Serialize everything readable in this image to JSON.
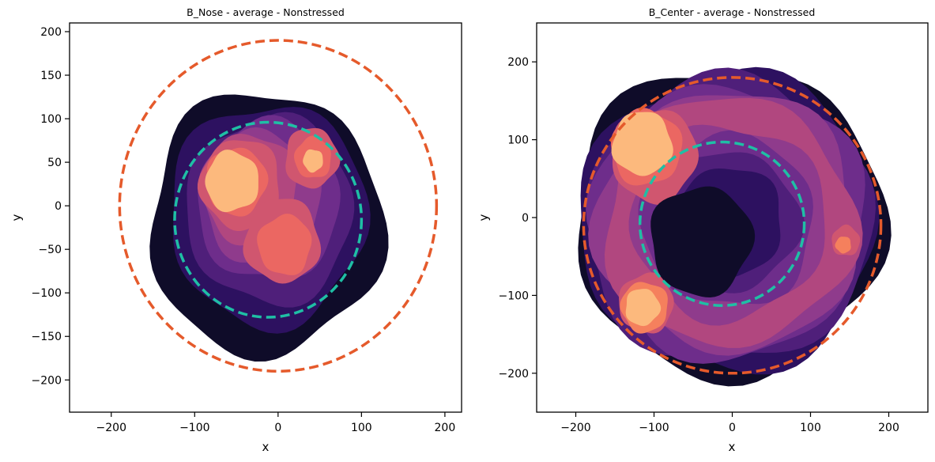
{
  "chart_data": [
    {
      "type": "kde-density-contour",
      "title": "B_Nose - average - Nonstressed",
      "xlabel": "x",
      "ylabel": "y",
      "xlim": [
        -250,
        220
      ],
      "ylim": [
        210,
        -237
      ],
      "y_inverted": true,
      "xticks": [
        -200,
        -100,
        0,
        100,
        200
      ],
      "yticks": [
        -200,
        -150,
        -100,
        -50,
        0,
        50,
        100,
        150,
        200
      ],
      "colormap": [
        "#0f0c29",
        "#2d1160",
        "#4f1f7a",
        "#6e2d8b",
        "#8f3b8c",
        "#b1477f",
        "#d0566f",
        "#eb6762",
        "#f5805d",
        "#fcb97d"
      ],
      "circles": [
        {
          "name": "outer",
          "center": [
            0,
            0
          ],
          "radius": 190,
          "color": "#e55a2b"
        },
        {
          "name": "inner",
          "center": [
            -12,
            -16
          ],
          "radius": 112,
          "color": "#1fbfa5"
        }
      ],
      "density_blobs": [
        {
          "center": [
            -15,
            -20
          ],
          "radius": 140,
          "level": 0
        },
        {
          "center": [
            -12,
            -10
          ],
          "radius": 118,
          "level": 1
        },
        {
          "center": [
            -10,
            -5
          ],
          "radius": 100,
          "level": 2
        },
        {
          "center": [
            -12,
            5
          ],
          "radius": 85,
          "level": 3
        },
        {
          "center": [
            -20,
            10
          ],
          "radius": 70,
          "level": 4
        },
        {
          "center": [
            -35,
            20
          ],
          "radius": 58,
          "level": 5
        },
        {
          "center": [
            -45,
            25
          ],
          "radius": 48,
          "level": 6
        },
        {
          "center": [
            5,
            -40
          ],
          "radius": 45,
          "level": 6
        },
        {
          "center": [
            40,
            55
          ],
          "radius": 32,
          "level": 6
        },
        {
          "center": [
            -50,
            28
          ],
          "radius": 36,
          "level": 7
        },
        {
          "center": [
            8,
            -45
          ],
          "radius": 32,
          "level": 7
        },
        {
          "center": [
            42,
            55
          ],
          "radius": 22,
          "level": 7
        },
        {
          "center": [
            -55,
            28
          ],
          "radius": 32,
          "level": 9
        },
        {
          "center": [
            42,
            52
          ],
          "radius": 12,
          "level": 9
        }
      ]
    },
    {
      "type": "kde-density-contour",
      "title": "B_Center - average - Nonstressed",
      "xlabel": "x",
      "ylabel": "y",
      "xlim": [
        -250,
        250
      ],
      "ylim": [
        250,
        -250
      ],
      "y_inverted": true,
      "xticks": [
        -200,
        -100,
        0,
        100,
        200
      ],
      "yticks": [
        -200,
        -100,
        0,
        100,
        200
      ],
      "colormap": [
        "#0f0c29",
        "#2d1160",
        "#4f1f7a",
        "#6e2d8b",
        "#8f3b8c",
        "#b1477f",
        "#d0566f",
        "#eb6762",
        "#f5805d",
        "#fcb97d"
      ],
      "circles": [
        {
          "name": "outer",
          "center": [
            0,
            -10
          ],
          "radius": 190,
          "color": "#e55a2b"
        },
        {
          "name": "inner",
          "center": [
            -13,
            -8
          ],
          "radius": 105,
          "color": "#1fbfa5"
        }
      ],
      "density_rings": [
        {
          "center": [
            -5,
            -5
          ],
          "outer_radius": 198,
          "inner_radius": 0,
          "level": 0
        },
        {
          "center": [
            -5,
            -5
          ],
          "outer_radius": 190,
          "inner_radius": 0,
          "level": 1
        },
        {
          "center": [
            -5,
            -5
          ],
          "outer_radius": 183,
          "inner_radius": 70,
          "level": 2
        },
        {
          "center": [
            -5,
            -5
          ],
          "outer_radius": 175,
          "inner_radius": 90,
          "level": 3
        },
        {
          "center": [
            -5,
            -5
          ],
          "outer_radius": 167,
          "inner_radius": 110,
          "level": 4
        },
        {
          "center": [
            -5,
            -5
          ],
          "outer_radius": 160,
          "inner_radius": 125,
          "level": 5
        }
      ],
      "density_blobs": [
        {
          "center": [
            -100,
            80
          ],
          "radius": 55,
          "level": 6
        },
        {
          "center": [
            -110,
            -110
          ],
          "radius": 35,
          "level": 6
        },
        {
          "center": [
            145,
            -30
          ],
          "radius": 18,
          "level": 6
        },
        {
          "center": [
            -110,
            90
          ],
          "radius": 45,
          "level": 7
        },
        {
          "center": [
            -112,
            -115
          ],
          "radius": 30,
          "level": 8
        },
        {
          "center": [
            142,
            -35
          ],
          "radius": 10,
          "level": 8
        },
        {
          "center": [
            -115,
            95
          ],
          "radius": 38,
          "level": 9
        },
        {
          "center": [
            -115,
            -115
          ],
          "radius": 22,
          "level": 9
        },
        {
          "center": [
            -40,
            -30
          ],
          "radius": 65,
          "level": 0
        }
      ]
    }
  ]
}
